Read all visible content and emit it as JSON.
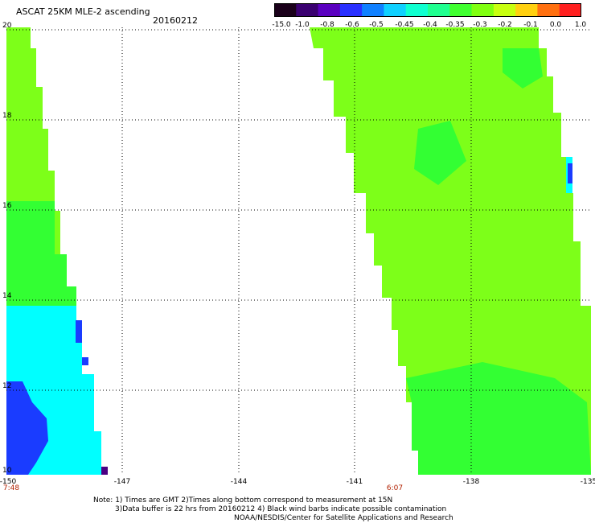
{
  "header": {
    "title": "ASCAT 25KM MLE-2 ascending",
    "date": "20160212"
  },
  "colorbar": {
    "labels": [
      "-15.0",
      "-1.0",
      "-0.8",
      "-0.6",
      "-0.5",
      "-0.45",
      "-0.4",
      "-0.35",
      "-0.3",
      "-0.2",
      "-0.1",
      "0.0",
      "1.0"
    ],
    "colors": [
      "#1a001a",
      "#3a0070",
      "#5a00c0",
      "#2a30ff",
      "#1080ff",
      "#10d0ff",
      "#10ffd0",
      "#20ff90",
      "#40ff30",
      "#80ff10",
      "#c8ff10",
      "#ffd010",
      "#ff7010",
      "#ff2020"
    ]
  },
  "axes": {
    "y_ticks": [
      "20",
      "18",
      "16",
      "14",
      "12",
      "10"
    ],
    "x_ticks": [
      "-150",
      "-147",
      "-144",
      "-141",
      "-138",
      "-135"
    ],
    "time_labels": [
      "7:48",
      "6:07"
    ]
  },
  "notes": {
    "line1": "Note: 1) Times are GMT 2)Times along bottom correspond to measurement at 15N",
    "line2": "3)Data buffer is 22 hrs from 20160212 4) Black wind barbs indicate possible contamination",
    "line3": "NOAA/NESDIS/Center for Satellite Applications and Research"
  },
  "map": {
    "lat_range": [
      10,
      20
    ],
    "lon_range": [
      -150,
      -135
    ],
    "swath_colors": {
      "lime": "#7dff19",
      "green": "#33ff33",
      "cyan": "#00ffff",
      "blue": "#1a3cff",
      "purple": "#4b0082"
    }
  }
}
